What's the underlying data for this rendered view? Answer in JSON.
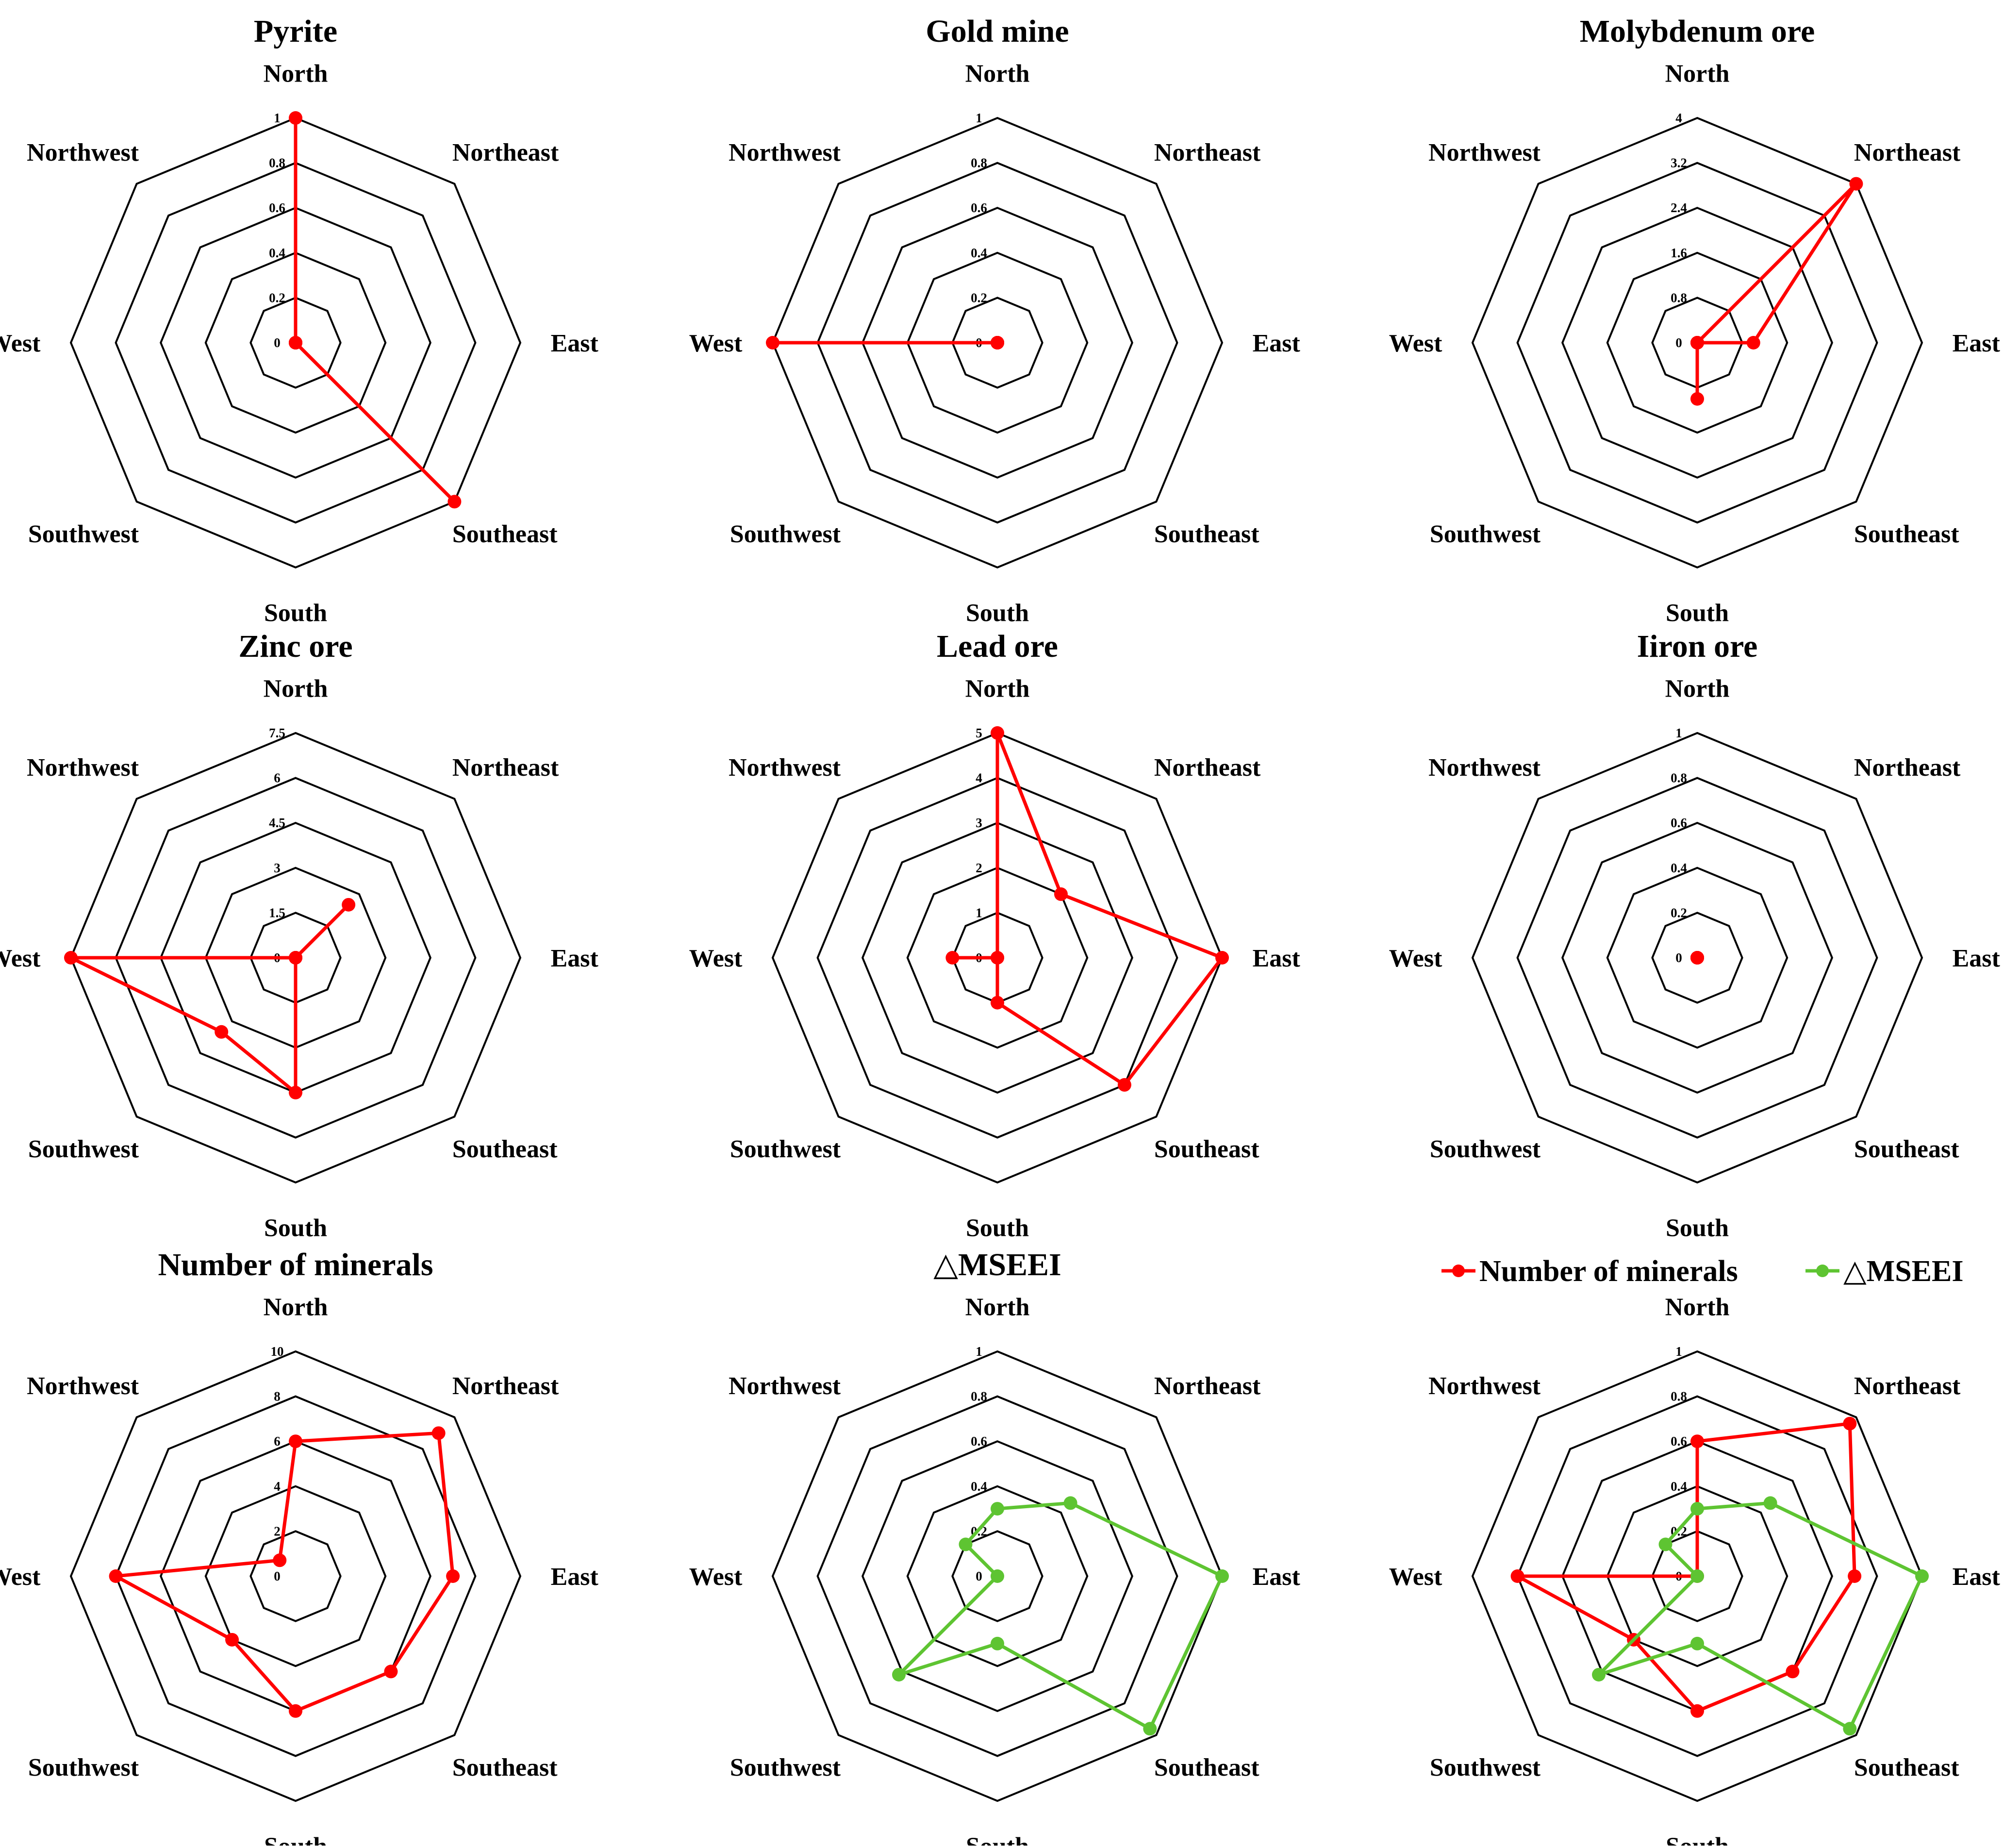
{
  "directions": [
    "North",
    "Northeast",
    "East",
    "Southeast",
    "South",
    "Southwest",
    "West",
    "Northwest"
  ],
  "colors": {
    "red": "#ff0000",
    "green": "#5ec432",
    "grid": "#000000"
  },
  "legend": {
    "items": [
      {
        "label": "Number of minerals",
        "color": "#ff0000"
      },
      {
        "label": "△MSEEI",
        "color": "#5ec432"
      }
    ]
  },
  "chart_data": [
    {
      "type": "radar",
      "title": "Pyrite",
      "ticks": [
        "0",
        "0.2",
        "0.4",
        "0.6",
        "0.8",
        "1"
      ],
      "rmax": 1,
      "series": [
        {
          "name": "Pyrite",
          "color": "#ff0000",
          "values": [
            1,
            0,
            0,
            1,
            0,
            0,
            0,
            0
          ]
        }
      ]
    },
    {
      "type": "radar",
      "title": "Gold mine",
      "ticks": [
        "0",
        "0.2",
        "0.4",
        "0.6",
        "0.8",
        "1"
      ],
      "rmax": 1,
      "series": [
        {
          "name": "Gold mine",
          "color": "#ff0000",
          "values": [
            0,
            0,
            0,
            0,
            0,
            0,
            1,
            0
          ]
        }
      ]
    },
    {
      "type": "radar",
      "title": "Molybdenum ore",
      "ticks": [
        "0",
        "0.8",
        "1.6",
        "2.4",
        "3.2",
        "4"
      ],
      "rmax": 4,
      "series": [
        {
          "name": "Molybdenum ore",
          "color": "#ff0000",
          "values": [
            0,
            4,
            1,
            0,
            1,
            0,
            0,
            0
          ]
        }
      ]
    },
    {
      "type": "radar",
      "title": "Zinc ore",
      "ticks": [
        "0",
        "1.5",
        "3",
        "4.5",
        "6",
        "7.5"
      ],
      "rmax": 7.5,
      "series": [
        {
          "name": "Zinc ore",
          "color": "#ff0000",
          "values": [
            0,
            2.5,
            0,
            0,
            4.5,
            3.5,
            7.5,
            0
          ]
        }
      ]
    },
    {
      "type": "radar",
      "title": "Lead ore",
      "ticks": [
        "0",
        "1",
        "2",
        "3",
        "4",
        "5"
      ],
      "rmax": 5,
      "series": [
        {
          "name": "Lead ore",
          "color": "#ff0000",
          "values": [
            5,
            2,
            5,
            4,
            1,
            0,
            1,
            0
          ]
        }
      ]
    },
    {
      "type": "radar",
      "title": "Iiron ore",
      "ticks": [
        "0",
        "0.2",
        "0.4",
        "0.6",
        "0.8",
        "1"
      ],
      "rmax": 1,
      "series": [
        {
          "name": "Iiron ore",
          "color": "#ff0000",
          "values": [
            0,
            0,
            0,
            0,
            0,
            0,
            0,
            0
          ]
        }
      ]
    },
    {
      "type": "radar",
      "title": "Number of minerals",
      "ticks": [
        "0",
        "2",
        "4",
        "6",
        "8",
        "10"
      ],
      "rmax": 10,
      "series": [
        {
          "name": "Number of minerals",
          "color": "#ff0000",
          "values": [
            6,
            9,
            7,
            6,
            6,
            4,
            8,
            1
          ]
        }
      ]
    },
    {
      "type": "radar",
      "title": "△MSEEI",
      "ticks": [
        "0",
        "0.2",
        "0.4",
        "0.6",
        "0.8",
        "1"
      ],
      "rmax": 1,
      "series": [
        {
          "name": "△MSEEI",
          "color": "#5ec432",
          "values": [
            0.3,
            0.46,
            1,
            0.96,
            0.3,
            0.62,
            0,
            0.2
          ]
        }
      ]
    },
    {
      "type": "radar",
      "title": "",
      "ticks": [
        "0",
        "0.2",
        "0.4",
        "0.6",
        "0.8",
        "1"
      ],
      "rmax": 1,
      "series": [
        {
          "name": "Number of minerals",
          "color": "#ff0000",
          "values": [
            0.6,
            0.96,
            0.7,
            0.6,
            0.6,
            0.4,
            0.8,
            0
          ]
        },
        {
          "name": "△MSEEI",
          "color": "#5ec432",
          "values": [
            0.3,
            0.46,
            1,
            0.96,
            0.3,
            0.62,
            0,
            0.2
          ]
        }
      ]
    }
  ]
}
